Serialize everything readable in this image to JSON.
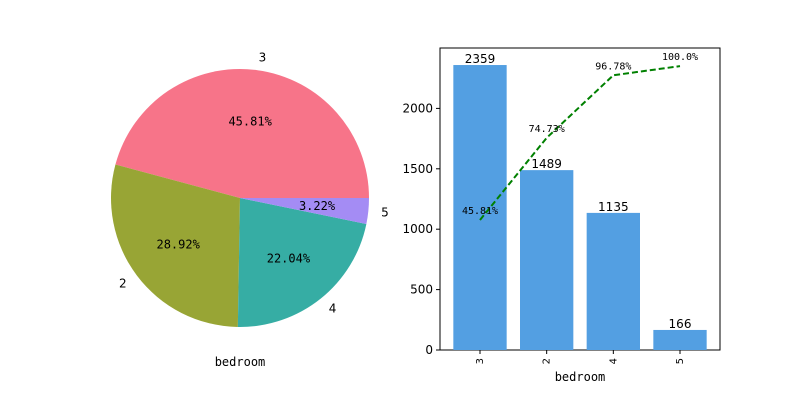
{
  "chart_data": [
    {
      "type": "pie",
      "xlabel": "bedroom",
      "categories": [
        "3",
        "2",
        "4",
        "5"
      ],
      "values": [
        2359,
        1489,
        1135,
        166
      ],
      "percent_labels": [
        "45.81%",
        "28.92%",
        "22.04%",
        "3.22%"
      ],
      "colors": [
        "#f77489",
        "#98a535",
        "#36ada4",
        "#a48cf4"
      ]
    },
    {
      "type": "bar",
      "xlabel": "bedroom",
      "categories": [
        "3",
        "2",
        "4",
        "5"
      ],
      "values": [
        2359,
        1489,
        1135,
        166
      ],
      "value_labels": [
        "2359",
        "1489",
        "1135",
        "166"
      ],
      "ylim": [
        0,
        2500
      ],
      "yticks": [
        0,
        500,
        1000,
        1500,
        2000
      ],
      "ytick_labels": [
        "0",
        "500",
        "1000",
        "1500",
        "2000"
      ],
      "bar_color": "#539fe2",
      "cumulative": {
        "type": "line",
        "style": "dashed",
        "color": "#008000",
        "values": [
          45.81,
          74.73,
          96.78,
          100.0
        ],
        "labels": [
          "45.81%",
          "74.73%",
          "96.78%",
          "100.0%"
        ]
      }
    }
  ]
}
